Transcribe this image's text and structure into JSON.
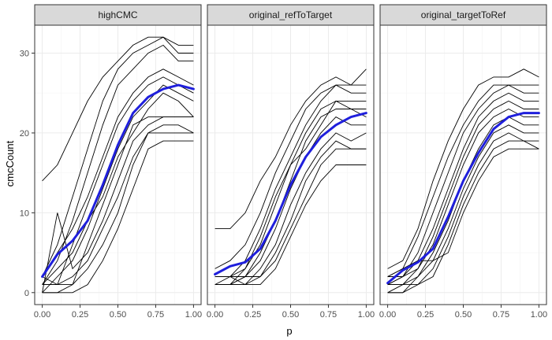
{
  "chart_data": {
    "type": "line",
    "xlabel": "p",
    "ylabel": "cmcCount",
    "xlim": [
      -0.05,
      1.05
    ],
    "ylim": [
      -1.5,
      33.5
    ],
    "x_ticks": [
      0,
      0.25,
      0.5,
      0.75,
      1
    ],
    "x_tick_labels": [
      "0.00",
      "0.25",
      "0.50",
      "0.75",
      "1.00"
    ],
    "y_ticks": [
      0,
      10,
      20,
      30
    ],
    "y_tick_labels": [
      "0",
      "10",
      "20",
      "30"
    ],
    "grid": true,
    "x": [
      0,
      0.1,
      0.2,
      0.3,
      0.4,
      0.5,
      0.6,
      0.7,
      0.8,
      0.9,
      1.0
    ],
    "colors": {
      "raw_line": "#000000",
      "smooth_line": "#1f1fdc",
      "panel_bg": "#ffffff",
      "panel_border": "#333333",
      "strip_bg": "#d9d9d9",
      "grid_major": "#ebebeb",
      "grid_minor": "#f5f5f5"
    },
    "panels": [
      {
        "title": "highCMC",
        "raw_series": [
          [
            14,
            16,
            20,
            24,
            27,
            29,
            31,
            32,
            32,
            31,
            31
          ],
          [
            2,
            6,
            12,
            18,
            24,
            28,
            30,
            31,
            32,
            30,
            30
          ],
          [
            1,
            4,
            9,
            15,
            21,
            26,
            28,
            30,
            31,
            29,
            29
          ],
          [
            2,
            5,
            8,
            12,
            17,
            22,
            25,
            27,
            28,
            27,
            26
          ],
          [
            1,
            1,
            6,
            11,
            16,
            21,
            24,
            26,
            27,
            26,
            25
          ],
          [
            0,
            2,
            4,
            8,
            13,
            18,
            22,
            24,
            26,
            25,
            24
          ],
          [
            1,
            3,
            5,
            9,
            12,
            17,
            20,
            23,
            25,
            24,
            22
          ],
          [
            2,
            1,
            1,
            6,
            11,
            16,
            21,
            22,
            22,
            22,
            22
          ],
          [
            0,
            10,
            3,
            5,
            9,
            14,
            19,
            21,
            22,
            22,
            22
          ],
          [
            1,
            1,
            2,
            4,
            8,
            12,
            17,
            20,
            21,
            21,
            20
          ],
          [
            0,
            0,
            1,
            3,
            6,
            10,
            16,
            20,
            20,
            20,
            20
          ],
          [
            0,
            0,
            0,
            1,
            4,
            8,
            13,
            18,
            19,
            19,
            19
          ]
        ],
        "smooth": [
          2,
          4.8,
          6.5,
          9,
          13.5,
          18.5,
          22.5,
          24.5,
          25.5,
          26,
          25.5
        ]
      },
      {
        "title": "original_refToTarget",
        "raw_series": [
          [
            8,
            8,
            10,
            14,
            17,
            21,
            24,
            26,
            27,
            26,
            28
          ],
          [
            3,
            4,
            6,
            10,
            15,
            19,
            23,
            25,
            26,
            26,
            26
          ],
          [
            2,
            2,
            4,
            8,
            13,
            17,
            21,
            24,
            26,
            25,
            25
          ],
          [
            1,
            2,
            3,
            6,
            11,
            16,
            20,
            23,
            24,
            24,
            24
          ],
          [
            1,
            1,
            2,
            5,
            9,
            14,
            19,
            22,
            23,
            23,
            23
          ],
          [
            1,
            1,
            3,
            7,
            12,
            16,
            18,
            21,
            24,
            23,
            22
          ],
          [
            2,
            2,
            2,
            4,
            8,
            13,
            17,
            20,
            22,
            21,
            21
          ],
          [
            1,
            1,
            1,
            3,
            6,
            11,
            15,
            18,
            20,
            19,
            20
          ],
          [
            1,
            1,
            2,
            2,
            5,
            9,
            14,
            17,
            19,
            18,
            18
          ],
          [
            1,
            1,
            1,
            2,
            4,
            8,
            12,
            16,
            18,
            18,
            18
          ],
          [
            2,
            2,
            1,
            1,
            3,
            7,
            11,
            14,
            16,
            16,
            16
          ]
        ],
        "smooth": [
          2.3,
          3.3,
          3.8,
          5.5,
          9,
          13.5,
          17,
          19.5,
          21,
          22,
          22.5
        ]
      },
      {
        "title": "original_targetToRef",
        "raw_series": [
          [
            3,
            4,
            8,
            14,
            19,
            23,
            26,
            27,
            27,
            28,
            27
          ],
          [
            2,
            3,
            7,
            12,
            17,
            21,
            24,
            26,
            26,
            26,
            26
          ],
          [
            1,
            2,
            5,
            10,
            15,
            20,
            23,
            25,
            26,
            25,
            25
          ],
          [
            2,
            2,
            4,
            8,
            13,
            18,
            22,
            24,
            25,
            24,
            24
          ],
          [
            1,
            2,
            3,
            7,
            12,
            17,
            21,
            23,
            24,
            23,
            23
          ],
          [
            0,
            1,
            3,
            6,
            11,
            16,
            20,
            22,
            23,
            22,
            22
          ],
          [
            1,
            1,
            2,
            5,
            9,
            14,
            18,
            21,
            22,
            21,
            21
          ],
          [
            0,
            0,
            2,
            4,
            8,
            13,
            17,
            20,
            21,
            20,
            20
          ],
          [
            1,
            1,
            1,
            3,
            7,
            12,
            16,
            19,
            20,
            19,
            19
          ],
          [
            0,
            0,
            1,
            2,
            6,
            11,
            15,
            18,
            19,
            19,
            18
          ],
          [
            2,
            3,
            4,
            4,
            5,
            10,
            14,
            17,
            18,
            18,
            18
          ]
        ],
        "smooth": [
          1.2,
          2.8,
          3.8,
          5.5,
          9.5,
          14,
          17.5,
          20.5,
          22,
          22.5,
          22.5
        ]
      }
    ]
  }
}
